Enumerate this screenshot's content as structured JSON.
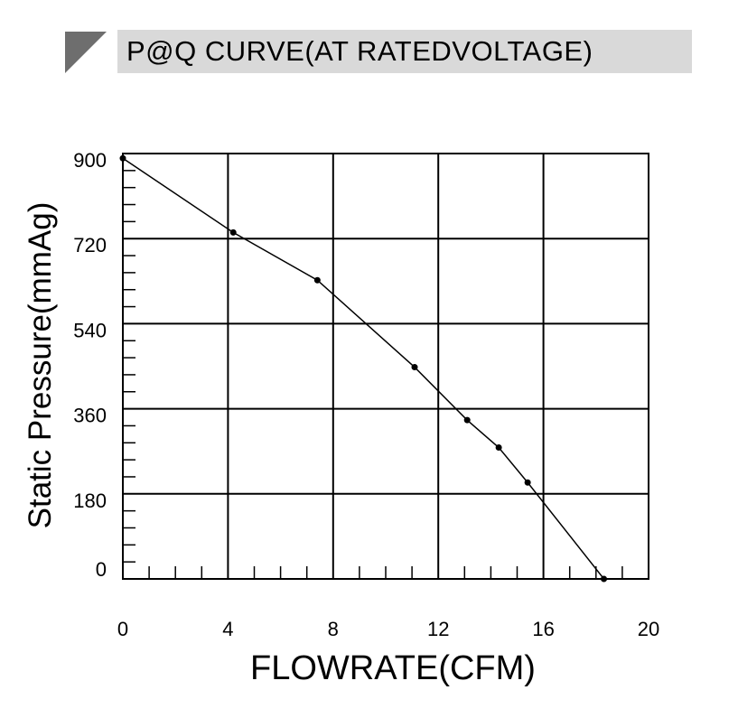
{
  "header": {
    "title": "P@Q CURVE(AT RATEDVOLTAGE)",
    "marker_color": "#6e6e6e",
    "bar_color": "#d9d9d9"
  },
  "chart_data": {
    "type": "line",
    "xlabel": "FLOWRATE(CFM)",
    "ylabel": "Static Pressure(mmAg)",
    "xlim": [
      0,
      20
    ],
    "ylim": [
      0,
      900
    ],
    "x_ticks": [
      0,
      4,
      8,
      12,
      16,
      20
    ],
    "y_ticks": [
      0,
      180,
      360,
      540,
      720,
      900
    ],
    "grid": true,
    "series": [
      {
        "x": [
          0,
          4.2,
          7.4,
          11.1,
          13.1,
          14.3,
          15.4,
          18.3
        ],
        "y": [
          890,
          733,
          632,
          448,
          336,
          278,
          204,
          0
        ]
      }
    ]
  }
}
